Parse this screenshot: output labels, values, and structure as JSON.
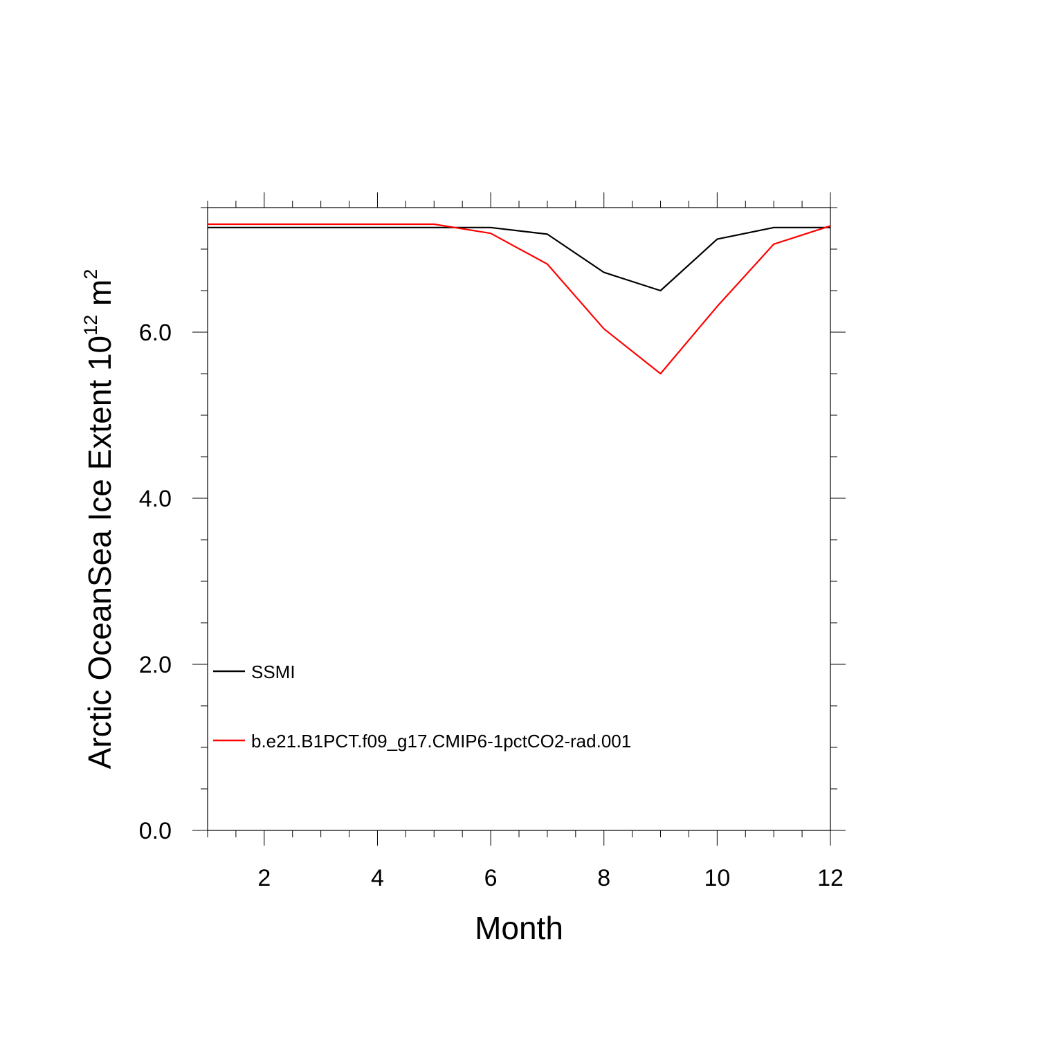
{
  "chart_data": {
    "type": "line",
    "xlabel": "Month",
    "ylabel": {
      "main": "Arctic OceanSea Ice Extent 10",
      "exp1": "12",
      "unit": " m",
      "exp2": "2"
    },
    "xlim": [
      1,
      12
    ],
    "ylim": [
      0,
      7.5
    ],
    "x_ticks": [
      2,
      4,
      6,
      8,
      10,
      12
    ],
    "x_tick_labels": [
      "2",
      "4",
      "6",
      "8",
      "10",
      "12"
    ],
    "y_ticks": [
      0,
      2,
      4,
      6
    ],
    "y_tick_labels": [
      "0.0",
      "2.0",
      "4.0",
      "6.0"
    ],
    "x_minor_step": 0.5,
    "y_minor_step": 0.5,
    "grid": false,
    "legend_position": "lower-left",
    "series": [
      {
        "name": "SSMI",
        "color": "#000000",
        "x": [
          1,
          2,
          3,
          4,
          5,
          6,
          7,
          8,
          9,
          10,
          11,
          12
        ],
        "values": [
          7.26,
          7.26,
          7.26,
          7.26,
          7.26,
          7.26,
          7.18,
          6.72,
          6.5,
          7.12,
          7.26,
          7.26
        ]
      },
      {
        "name": "b.e21.B1PCT.f09_g17.CMIP6-1pctCO2-rad.001",
        "color": "#ff0000",
        "x": [
          1,
          2,
          3,
          4,
          5,
          6,
          7,
          8,
          9,
          10,
          11,
          12
        ],
        "values": [
          7.3,
          7.3,
          7.3,
          7.3,
          7.3,
          7.19,
          6.82,
          6.04,
          5.5,
          6.31,
          7.06,
          7.28
        ]
      }
    ]
  }
}
